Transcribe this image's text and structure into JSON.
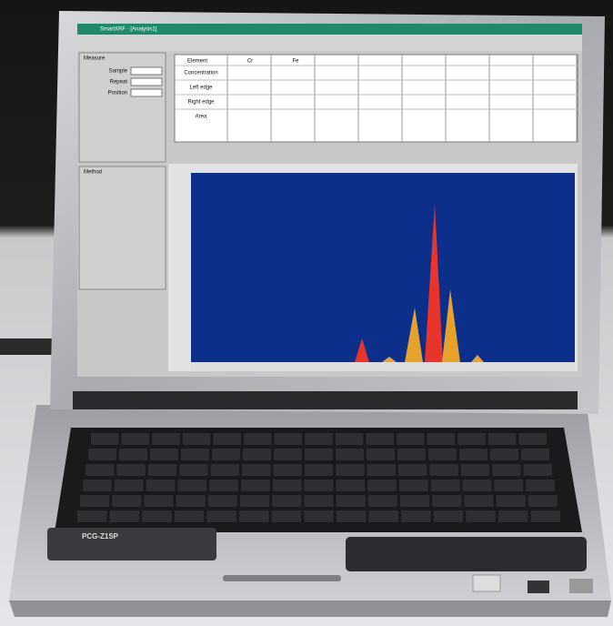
{
  "window": {
    "title": "SmartXRF - [Analysis1]"
  },
  "left_panel": {
    "group1": "Measure",
    "fields": [
      "Sample",
      "Repeat",
      "Position"
    ],
    "group2": "Method"
  },
  "table": {
    "header": [
      "Element",
      "Cr",
      "Fe"
    ],
    "rows": [
      "Concentration",
      "Left edge",
      "Right edge",
      "Area"
    ]
  },
  "laptop": {
    "model": "PCG-Z1SP"
  }
}
